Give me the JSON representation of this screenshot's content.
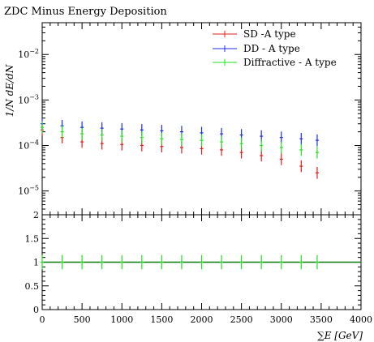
{
  "chart_data": [
    {
      "type": "scatter",
      "title": "ZDC Minus Energy Deposition",
      "ylabel": "1/N dE/dN",
      "xlabel": "",
      "yscale": "log",
      "xlim": [
        0,
        4000
      ],
      "ylim": [
        3e-06,
        0.05
      ],
      "yticklabels": [
        "10^-5",
        "10^-4",
        "10^-3",
        "10^-2"
      ],
      "legend_position": "top-right",
      "series": [
        {
          "name": "SD -A type",
          "color": "#e11d1d",
          "x": [
            0,
            250,
            500,
            750,
            1000,
            1250,
            1500,
            1750,
            2000,
            2250,
            2500,
            2750,
            3000,
            3250,
            3450
          ],
          "y": [
            0.00022,
            0.00015,
            0.00012,
            0.00011,
            0.000105,
            0.0001,
            9.5e-05,
            9e-05,
            8.5e-05,
            8e-05,
            7e-05,
            6e-05,
            5e-05,
            3.5e-05,
            2.5e-05
          ]
        },
        {
          "name": "DD - A type",
          "color": "#1f2fe0",
          "x": [
            0,
            250,
            500,
            750,
            1000,
            1250,
            1500,
            1750,
            2000,
            2250,
            2500,
            2750,
            3000,
            3250,
            3450
          ],
          "y": [
            0.0003,
            0.00027,
            0.00025,
            0.00024,
            0.00023,
            0.00022,
            0.00021,
            0.0002,
            0.00019,
            0.00018,
            0.00017,
            0.00016,
            0.00015,
            0.00014,
            0.00013
          ]
        },
        {
          "name": "Diffractive - A type",
          "color": "#22e022",
          "x": [
            0,
            250,
            500,
            750,
            1000,
            1250,
            1500,
            1750,
            2000,
            2250,
            2500,
            2750,
            3000,
            3250,
            3450
          ],
          "y": [
            0.00025,
            0.0002,
            0.00018,
            0.00017,
            0.00016,
            0.00015,
            0.00014,
            0.000135,
            0.00013,
            0.00012,
            0.00011,
            0.0001,
            9e-05,
            8e-05,
            7e-05
          ]
        }
      ]
    },
    {
      "type": "scatter",
      "title": "",
      "xlabel": "∑E [GeV]",
      "ylabel": "",
      "xlim": [
        0,
        4000
      ],
      "ylim": [
        0,
        2
      ],
      "xticklabels": [
        "0",
        "500",
        "1000",
        "1500",
        "2000",
        "2500",
        "3000",
        "3500",
        "4000"
      ],
      "yticklabels": [
        "0",
        "0.5",
        "1",
        "1.5",
        "2"
      ],
      "series": [
        {
          "name": "",
          "color": "#22e022",
          "x": [
            0,
            250,
            500,
            750,
            1000,
            1250,
            1500,
            1750,
            2000,
            2250,
            2500,
            2750,
            3000,
            3250,
            3450
          ],
          "y": [
            1,
            1,
            1,
            1,
            1,
            1,
            1,
            1,
            1,
            1,
            1,
            1,
            1,
            1,
            1
          ]
        }
      ],
      "reference_line": 1
    }
  ]
}
